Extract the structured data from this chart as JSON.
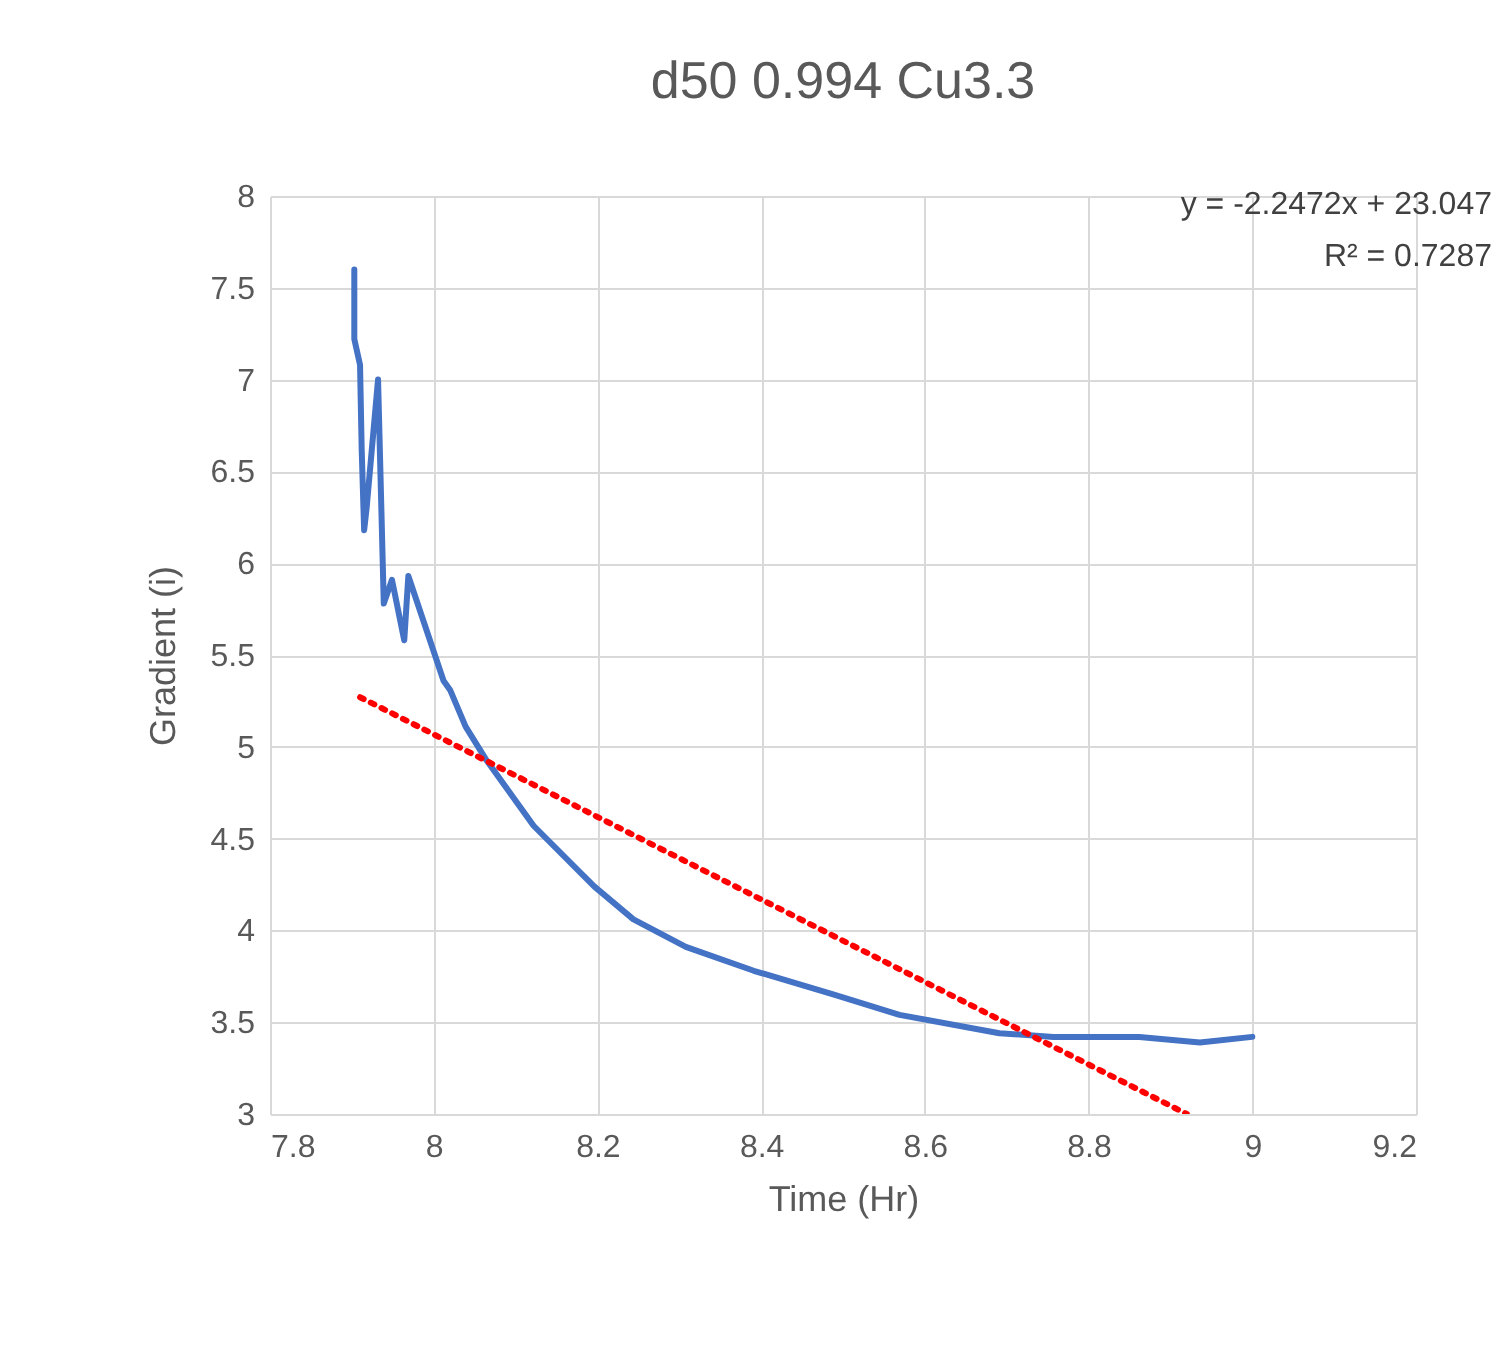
{
  "chart_data": {
    "type": "line",
    "title": "d50 0.994 Cu3.3",
    "xlabel": "Time (Hr)",
    "ylabel": "Gradient (i)",
    "annotations": [
      "y = -2.2472x + 23.047",
      "R² = 0.7287"
    ],
    "series": [
      {
        "color": "#4472c4",
        "x": [
          7.903,
          7.903,
          7.91,
          7.912,
          7.915,
          7.918,
          7.932,
          7.939,
          7.949,
          7.964,
          7.969,
          8.012,
          8.02,
          8.039,
          8.064,
          8.122,
          8.196,
          8.244,
          8.308,
          8.391,
          8.489,
          8.569,
          8.691,
          8.757,
          8.862,
          8.936,
          9.0
        ],
        "values": [
          7.6,
          7.22,
          7.08,
          6.62,
          6.18,
          6.3,
          7.0,
          5.78,
          5.91,
          5.58,
          5.93,
          5.36,
          5.31,
          5.11,
          4.93,
          4.57,
          4.24,
          4.06,
          3.91,
          3.78,
          3.65,
          3.54,
          3.44,
          3.42,
          3.42,
          3.39,
          3.42
        ]
      },
      {
        "type": "line",
        "color": "#ff0000",
        "line_style": "dotted",
        "x": [
          7.91,
          8.92
        ],
        "values": [
          5.27,
          3.0
        ]
      }
    ],
    "xlim": [
      7.8,
      9.2
    ],
    "xticks": [
      7.8,
      8,
      8.2,
      8.4,
      8.6,
      8.8,
      9,
      9.2
    ],
    "ylim": [
      3,
      8
    ],
    "yticks": [
      3,
      3.5,
      4,
      4.5,
      5,
      5.5,
      6,
      6.5,
      7,
      7.5,
      8
    ],
    "grid": true,
    "marker": "none",
    "line_style": "solid"
  }
}
